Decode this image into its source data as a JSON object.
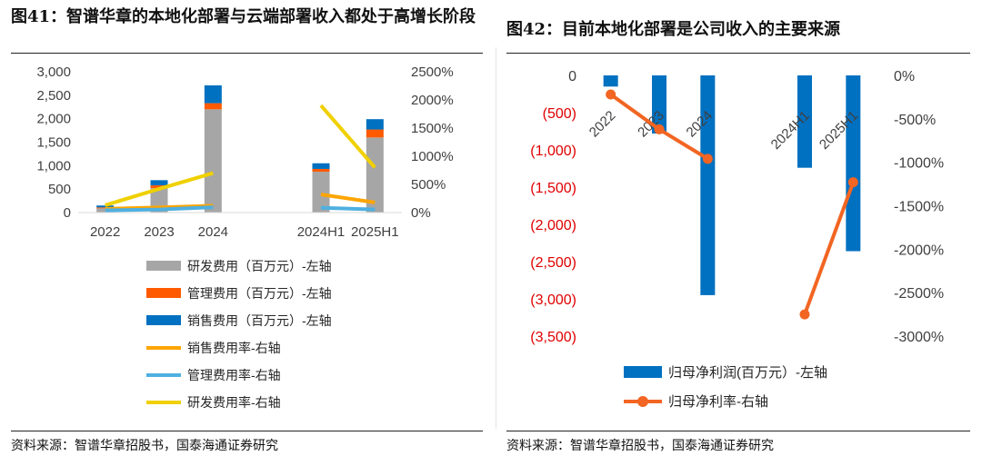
{
  "figures": [
    {
      "title": "图41：智谱华章的本地化部署与云端部署收入都处于高增长阶段",
      "source": "资料来源：智谱华章招股书，国泰海通证券研究"
    },
    {
      "title": "图42：目前本地化部署是公司收入的主要来源",
      "source": "资料来源：智谱华章招股书，国泰海通证券研究"
    }
  ],
  "chart_data": [
    {
      "type": "bar",
      "stacked": true,
      "categories": [
        "2022",
        "2023",
        "2024",
        "",
        "2024H1",
        "2025H1"
      ],
      "series": [
        {
          "name": "研发费用（百万元）-左轴",
          "type": "bar",
          "axis": "left",
          "color": "#a6a6a6",
          "values": [
            90,
            520,
            2200,
            null,
            870,
            1600
          ]
        },
        {
          "name": "管理费用（百万元）-左轴",
          "type": "bar",
          "axis": "left",
          "color": "#ff5a00",
          "values": [
            20,
            60,
            130,
            null,
            60,
            170
          ]
        },
        {
          "name": "销售费用（百万元）-左轴",
          "type": "bar",
          "axis": "left",
          "color": "#0070c0",
          "values": [
            40,
            110,
            380,
            null,
            120,
            220
          ]
        },
        {
          "name": "销售费用率-右轴",
          "type": "line",
          "axis": "right",
          "color": "#ffa500",
          "values": [
            65,
            90,
            120,
            null,
            320,
            180
          ]
        },
        {
          "name": "管理费用率-右轴",
          "type": "line",
          "axis": "right",
          "color": "#4fb0e0",
          "values": [
            40,
            55,
            95,
            null,
            85,
            55
          ]
        },
        {
          "name": "研发费用率-右轴",
          "type": "line",
          "axis": "right",
          "color": "#f0d000",
          "values": [
            130,
            420,
            700,
            null,
            1900,
            800
          ]
        }
      ],
      "y_left": {
        "min": 0,
        "max": 3000,
        "ticks": [
          0,
          500,
          1000,
          1500,
          2000,
          2500,
          3000
        ],
        "tick_labels": [
          "0",
          "500",
          "1,000",
          "1,500",
          "2,000",
          "2,500",
          "3,000"
        ]
      },
      "y_right": {
        "min": 0,
        "max": 2500,
        "ticks": [
          0,
          500,
          1000,
          1500,
          2000,
          2500
        ],
        "tick_labels": [
          "0%",
          "500%",
          "1000%",
          "1500%",
          "2000%",
          "2500%"
        ]
      },
      "x_tick_labels": [
        "2022",
        "2023",
        "2024",
        "2024H1",
        "2025H1"
      ],
      "legend": "bottom",
      "grid": false
    },
    {
      "type": "bar",
      "categories": [
        "2022",
        "2023",
        "2024",
        "",
        "2024H1",
        "2025H1"
      ],
      "series": [
        {
          "name": "归母净利润(百万元）-左轴",
          "type": "bar",
          "axis": "left",
          "color": "#0070c0",
          "values": [
            -150,
            -780,
            -2950,
            null,
            -1240,
            -2360
          ]
        },
        {
          "name": "归母净利率-右轴",
          "type": "line",
          "axis": "right",
          "color": "#f26522",
          "values": [
            -220,
            -620,
            -960,
            null,
            -2750,
            -1230
          ]
        }
      ],
      "y_left": {
        "min": -3500,
        "max": 0,
        "ticks": [
          0,
          -500,
          -1000,
          -1500,
          -2000,
          -2500,
          -3000,
          -3500
        ],
        "tick_labels": [
          "0",
          "(500)",
          "(1,000)",
          "(1,500)",
          "(2,000)",
          "(2,500)",
          "(3,000)",
          "(3,500)"
        ],
        "negative_color": "#e00000"
      },
      "y_right": {
        "min": -3000,
        "max": 0,
        "ticks": [
          0,
          -500,
          -1000,
          -1500,
          -2000,
          -2500,
          -3000
        ],
        "tick_labels": [
          "0%",
          "-500%",
          "-1000%",
          "-1500%",
          "-2000%",
          "-2500%",
          "-3000%"
        ]
      },
      "x_tick_labels": [
        "2022",
        "2023",
        "2024",
        "2024H1",
        "2025H1"
      ],
      "legend": "bottom",
      "grid": false
    }
  ]
}
